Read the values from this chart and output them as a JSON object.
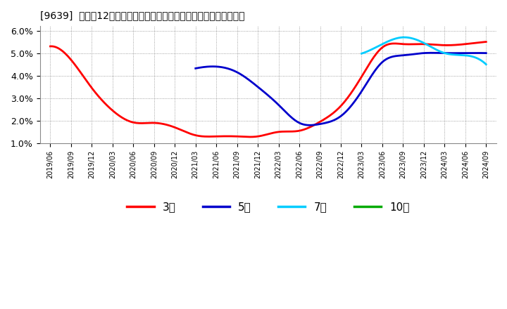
{
  "title": "[9639]  売上高12か月移動合計の対前年同期増減率の標準偏差の推移",
  "ylim": [
    0.01,
    0.062
  ],
  "yticks": [
    0.01,
    0.02,
    0.03,
    0.04,
    0.05,
    0.06
  ],
  "ytick_labels": [
    "1.0%",
    "2.0%",
    "3.0%",
    "4.0%",
    "5.0%",
    "6.0%"
  ],
  "background_color": "#ffffff",
  "plot_bg_color": "#ffffff",
  "grid_color": "#aaaaaa",
  "series": {
    "3year": {
      "color": "#ff0000",
      "label": "3年",
      "x_idx": [
        0,
        1,
        2,
        3,
        4,
        5,
        6,
        7,
        8,
        9,
        10,
        11,
        12,
        13,
        14,
        15,
        16,
        17,
        18,
        19,
        20,
        21
      ],
      "y": [
        0.053,
        0.047,
        0.0345,
        0.0245,
        0.0192,
        0.019,
        0.017,
        0.0135,
        0.013,
        0.013,
        0.013,
        0.015,
        0.0155,
        0.0195,
        0.0265,
        0.0395,
        0.0525,
        0.054,
        0.054,
        0.0535,
        0.054,
        0.055
      ]
    },
    "5year": {
      "color": "#0000cc",
      "label": "5年",
      "x_idx": [
        7,
        8,
        9,
        10,
        11,
        12,
        13,
        14,
        15,
        16,
        17,
        18,
        19,
        20,
        21
      ],
      "y": [
        0.0432,
        0.044,
        0.0415,
        0.035,
        0.027,
        0.019,
        0.0185,
        0.022,
        0.033,
        0.046,
        0.049,
        0.05,
        0.05,
        0.05,
        0.05
      ]
    },
    "7year": {
      "color": "#00ccff",
      "label": "7年",
      "x_idx": [
        15,
        16,
        17,
        18,
        19,
        20,
        21
      ],
      "y": [
        0.0498,
        0.054,
        0.057,
        0.0545,
        0.05,
        0.049,
        0.045
      ]
    },
    "10year": {
      "color": "#00aa00",
      "label": "10年",
      "x_idx": [],
      "y": []
    }
  },
  "legend_labels": [
    "3年",
    "5年",
    "7年",
    "10年"
  ],
  "legend_colors": [
    "#ff0000",
    "#0000cc",
    "#00ccff",
    "#00aa00"
  ],
  "x_tick_labels": [
    "2019/06",
    "2019/09",
    "2019/12",
    "2020/03",
    "2020/06",
    "2020/09",
    "2020/12",
    "2021/03",
    "2021/06",
    "2021/09",
    "2021/12",
    "2022/03",
    "2022/06",
    "2022/09",
    "2022/12",
    "2023/03",
    "2023/06",
    "2023/09",
    "2023/12",
    "2024/03",
    "2024/06",
    "2024/09"
  ]
}
